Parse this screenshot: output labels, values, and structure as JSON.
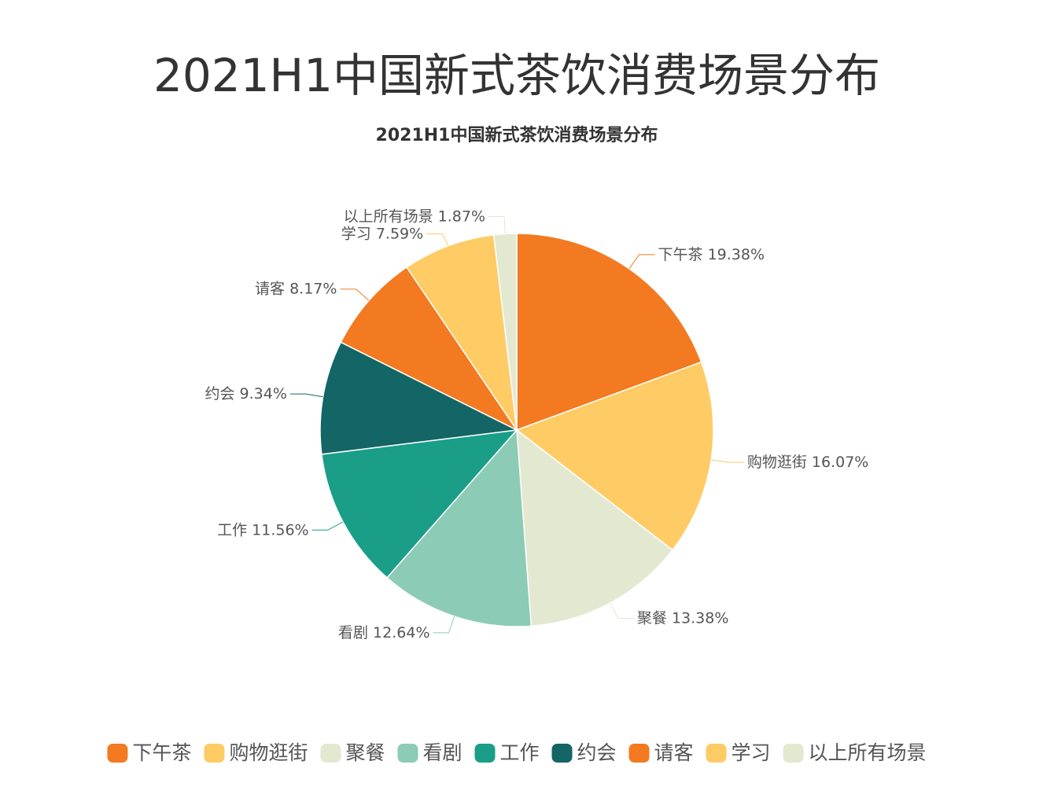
{
  "heading": "2021H1中国新式茶饮消费场景分布",
  "chart_data": {
    "type": "pie",
    "title": "2021H1中国新式茶饮消费场景分布",
    "categories": [
      "下午茶",
      "购物逛街",
      "聚餐",
      "看剧",
      "工作",
      "约会",
      "请客",
      "学习",
      "以上所有场景"
    ],
    "values": [
      19.38,
      16.07,
      13.38,
      12.64,
      11.56,
      9.34,
      8.17,
      7.59,
      1.87
    ],
    "value_labels": [
      "19.38%",
      "16.07%",
      "13.38%",
      "12.64%",
      "11.56%",
      "9.34%",
      "8.17%",
      "7.59%",
      "1.87%"
    ],
    "colors": [
      "#f37a20",
      "#fecb64",
      "#e3e8d0",
      "#8ccbb5",
      "#1a9e88",
      "#146565",
      "#f37a20",
      "#fecb64",
      "#e3e8d0"
    ],
    "legend": "bottom"
  }
}
